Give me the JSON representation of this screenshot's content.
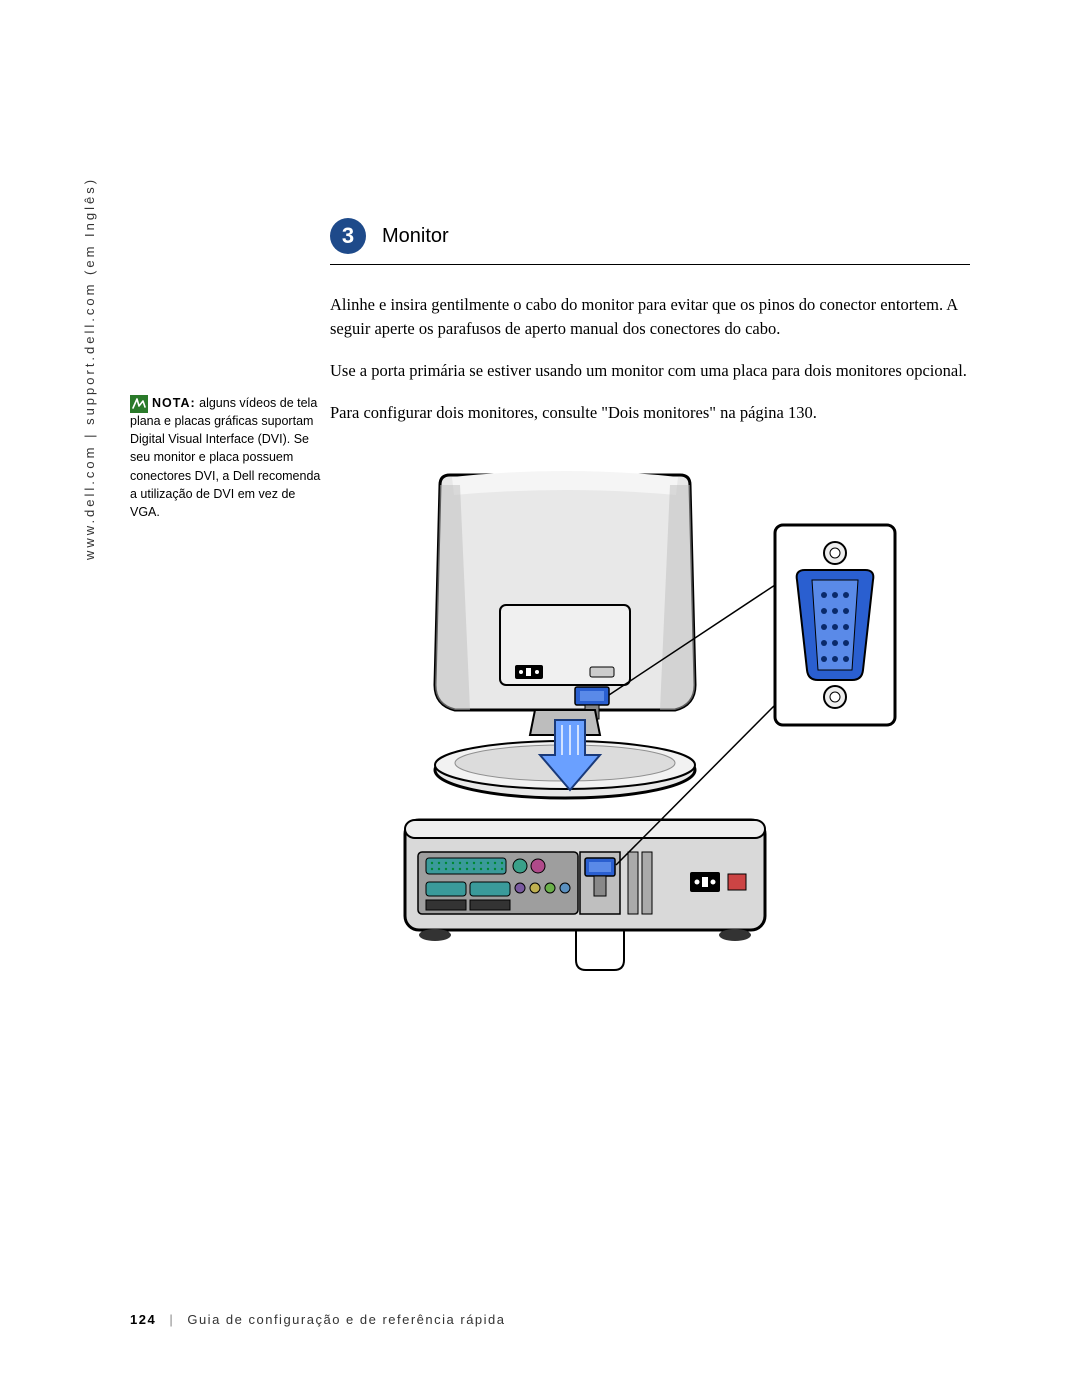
{
  "side_url": "www.dell.com | support.dell.com (em Inglês)",
  "step": {
    "number": "3",
    "title": "Monitor",
    "circle_color": "#1e4a8a"
  },
  "paragraphs": {
    "p1": "Alinhe e insira gentilmente o cabo do monitor para evitar que os pinos do conector entortem. A seguir aperte os parafusos de aperto manual dos conectores do cabo.",
    "p2": "Use a porta primária se estiver usando um monitor com uma placa para dois monitores opcional.",
    "p3": "Para configurar dois monitores, consulte \"Dois monitores\" na página 130."
  },
  "note": {
    "label": "NOTA:",
    "text": " alguns vídeos de tela plana e placas gráficas suportam Digital Visual Interface (DVI). Se seu monitor e placa possuem conectores DVI, a Dell recomenda a utilização de DVI em vez de VGA.",
    "icon_bg": "#2a7a2a",
    "icon_stroke": "#ffffff"
  },
  "footer": {
    "page": "124",
    "title": "Guia de configuração e de referência rápida"
  },
  "diagram": {
    "colors": {
      "monitor_fill": "#e8e8e8",
      "monitor_shadow": "#bdbdbd",
      "monitor_stroke": "#000000",
      "desktop_fill": "#d9d9d9",
      "desktop_dark": "#9e9e9e",
      "desktop_stroke": "#000000",
      "vga_blue": "#2a5fd0",
      "vga_blue_light": "#5a8ae8",
      "arrow_fill": "#6aa0ff",
      "arrow_stroke": "#1a3a7a",
      "port_teal": "#3aa089",
      "port_magenta": "#b04a8a",
      "port_green": "#6ab04a",
      "port_purple": "#7a5aa0",
      "port_yellow": "#c0b050",
      "port_blue": "#5a90c0",
      "parallel_teal": "#3a9a9a",
      "serial_teal": "#3a9a9a",
      "power_black": "#000000",
      "callout_fill": "#ffffff",
      "cable_grey": "#888888"
    }
  }
}
